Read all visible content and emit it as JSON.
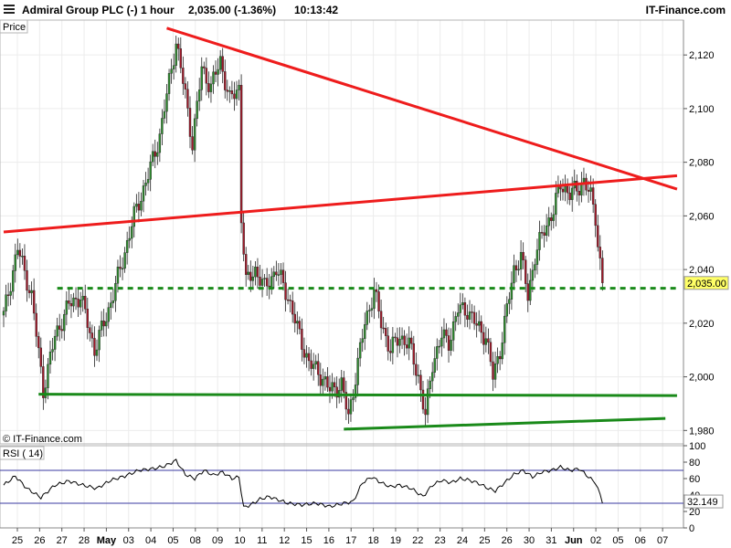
{
  "header": {
    "title": "Admiral Group PLC (-)",
    "timeframe": "1 hour",
    "quote": "2,035.00 (-1.36%)",
    "time": "10:13:42",
    "brand": "IT-Finance.com"
  },
  "main_panel": {
    "label": "Price",
    "copyright": "© IT-Finance.com"
  },
  "rsi_panel": {
    "label": "RSI ( 14)",
    "value_label": "32.149"
  },
  "colors": {
    "up": "#2e8b2e",
    "down": "#a01a2a",
    "resistance": "#ee1c1c",
    "support": "#1a8a1a",
    "rsi_line": "#000000",
    "rsi_ref": "#3a3aa0"
  },
  "chart_data": [
    {
      "type": "candlestick",
      "title": "Admiral Group PLC (-) 1 hour",
      "ylabel": "Price",
      "ylim": [
        1975,
        2133
      ],
      "y_ticks": [
        1980,
        2000,
        2020,
        2040,
        2060,
        2080,
        2100,
        2120
      ],
      "y_tick_labels": [
        "1,980",
        "2,000",
        "2,020",
        "2,040",
        "2,060",
        "2,080",
        "2,100",
        "2,120"
      ],
      "x_ticks": [
        "25",
        "26",
        "27",
        "28",
        "May",
        "03",
        "04",
        "05",
        "08",
        "09",
        "10",
        "11",
        "12",
        "15",
        "16",
        "17",
        "18",
        "19",
        "22",
        "23",
        "24",
        "25",
        "26",
        "30",
        "31",
        "Jun",
        "02",
        "05",
        "06",
        "07"
      ],
      "last_price_label": "2,035.00",
      "price_path": [
        {
          "i": 0,
          "v": 2023
        },
        {
          "i": 6,
          "v": 2048
        },
        {
          "i": 12,
          "v": 2030
        },
        {
          "i": 17,
          "v": 1995
        },
        {
          "i": 22,
          "v": 2015
        },
        {
          "i": 28,
          "v": 2027
        },
        {
          "i": 33,
          "v": 2030
        },
        {
          "i": 39,
          "v": 2010
        },
        {
          "i": 45,
          "v": 2025
        },
        {
          "i": 50,
          "v": 2040
        },
        {
          "i": 56,
          "v": 2060
        },
        {
          "i": 62,
          "v": 2075
        },
        {
          "i": 67,
          "v": 2090
        },
        {
          "i": 71,
          "v": 2110
        },
        {
          "i": 74,
          "v": 2125
        },
        {
          "i": 78,
          "v": 2105
        },
        {
          "i": 81,
          "v": 2087
        },
        {
          "i": 85,
          "v": 2115
        },
        {
          "i": 89,
          "v": 2108
        },
        {
          "i": 93,
          "v": 2118
        },
        {
          "i": 97,
          "v": 2103
        },
        {
          "i": 101,
          "v": 2108
        },
        {
          "i": 102,
          "v": 2060
        },
        {
          "i": 104,
          "v": 2035
        },
        {
          "i": 108,
          "v": 2040
        },
        {
          "i": 112,
          "v": 2033
        },
        {
          "i": 117,
          "v": 2040
        },
        {
          "i": 122,
          "v": 2030
        },
        {
          "i": 126,
          "v": 2018
        },
        {
          "i": 131,
          "v": 2005
        },
        {
          "i": 135,
          "v": 2002
        },
        {
          "i": 140,
          "v": 1995
        },
        {
          "i": 145,
          "v": 1997
        },
        {
          "i": 148,
          "v": 1985
        },
        {
          "i": 151,
          "v": 2000
        },
        {
          "i": 155,
          "v": 2020
        },
        {
          "i": 159,
          "v": 2032
        },
        {
          "i": 162,
          "v": 2020
        },
        {
          "i": 166,
          "v": 2010
        },
        {
          "i": 170,
          "v": 2015
        },
        {
          "i": 174,
          "v": 2012
        },
        {
          "i": 178,
          "v": 2000
        },
        {
          "i": 181,
          "v": 1985
        },
        {
          "i": 184,
          "v": 2005
        },
        {
          "i": 188,
          "v": 2015
        },
        {
          "i": 191,
          "v": 2013
        },
        {
          "i": 195,
          "v": 2025
        },
        {
          "i": 199,
          "v": 2025
        },
        {
          "i": 203,
          "v": 2019
        },
        {
          "i": 207,
          "v": 2015
        },
        {
          "i": 210,
          "v": 2000
        },
        {
          "i": 213,
          "v": 2010
        },
        {
          "i": 216,
          "v": 2025
        },
        {
          "i": 219,
          "v": 2040
        },
        {
          "i": 222,
          "v": 2045
        },
        {
          "i": 225,
          "v": 2030
        },
        {
          "i": 228,
          "v": 2045
        },
        {
          "i": 232,
          "v": 2055
        },
        {
          "i": 236,
          "v": 2062
        },
        {
          "i": 239,
          "v": 2072
        },
        {
          "i": 243,
          "v": 2068
        },
        {
          "i": 246,
          "v": 2070
        },
        {
          "i": 249,
          "v": 2073
        },
        {
          "i": 252,
          "v": 2067
        },
        {
          "i": 254,
          "v": 2060
        },
        {
          "i": 255,
          "v": 2050
        },
        {
          "i": 257,
          "v": 2035
        }
      ],
      "trendlines": [
        {
          "name": "resistance-upper",
          "color": "#ee1c1c",
          "style": "solid",
          "from": {
            "i": 70,
            "v": 2130
          },
          "to": {
            "i": 289,
            "v": 2070
          }
        },
        {
          "name": "resistance-lower",
          "color": "#ee1c1c",
          "style": "solid",
          "from": {
            "i": 0,
            "v": 2054
          },
          "to": {
            "i": 289,
            "v": 2075
          }
        },
        {
          "name": "support-dashed",
          "color": "#1a8a1a",
          "style": "dashed",
          "from": {
            "i": 23,
            "v": 2033
          },
          "to": {
            "i": 289,
            "v": 2033
          }
        },
        {
          "name": "support-flat",
          "color": "#1a8a1a",
          "style": "solid",
          "from": {
            "i": 15,
            "v": 1993.5
          },
          "to": {
            "i": 289,
            "v": 1993
          }
        },
        {
          "name": "support-rising",
          "color": "#1a8a1a",
          "style": "solid",
          "from": {
            "i": 146,
            "v": 1980.5
          },
          "to": {
            "i": 284,
            "v": 1984.5
          }
        }
      ],
      "grid": true
    },
    {
      "type": "line",
      "title": "RSI ( 14)",
      "ylim": [
        0,
        100
      ],
      "y_ticks": [
        0,
        20,
        40,
        60,
        80,
        100
      ],
      "reference_levels": [
        30,
        70
      ],
      "last_value": 32.149,
      "rsi_path": [
        {
          "i": 0,
          "v": 52
        },
        {
          "i": 5,
          "v": 63
        },
        {
          "i": 10,
          "v": 48
        },
        {
          "i": 16,
          "v": 37
        },
        {
          "i": 22,
          "v": 52
        },
        {
          "i": 28,
          "v": 57
        },
        {
          "i": 34,
          "v": 52
        },
        {
          "i": 40,
          "v": 48
        },
        {
          "i": 46,
          "v": 58
        },
        {
          "i": 52,
          "v": 63
        },
        {
          "i": 58,
          "v": 70
        },
        {
          "i": 64,
          "v": 72
        },
        {
          "i": 69,
          "v": 75
        },
        {
          "i": 74,
          "v": 82
        },
        {
          "i": 78,
          "v": 65
        },
        {
          "i": 82,
          "v": 60
        },
        {
          "i": 86,
          "v": 70
        },
        {
          "i": 90,
          "v": 64
        },
        {
          "i": 94,
          "v": 68
        },
        {
          "i": 98,
          "v": 60
        },
        {
          "i": 101,
          "v": 62
        },
        {
          "i": 103,
          "v": 25
        },
        {
          "i": 106,
          "v": 28
        },
        {
          "i": 110,
          "v": 35
        },
        {
          "i": 114,
          "v": 38
        },
        {
          "i": 118,
          "v": 34
        },
        {
          "i": 122,
          "v": 30
        },
        {
          "i": 128,
          "v": 28
        },
        {
          "i": 134,
          "v": 30
        },
        {
          "i": 140,
          "v": 26
        },
        {
          "i": 146,
          "v": 30
        },
        {
          "i": 150,
          "v": 32
        },
        {
          "i": 154,
          "v": 55
        },
        {
          "i": 158,
          "v": 62
        },
        {
          "i": 162,
          "v": 55
        },
        {
          "i": 166,
          "v": 50
        },
        {
          "i": 170,
          "v": 52
        },
        {
          "i": 175,
          "v": 48
        },
        {
          "i": 180,
          "v": 38
        },
        {
          "i": 184,
          "v": 52
        },
        {
          "i": 188,
          "v": 58
        },
        {
          "i": 192,
          "v": 55
        },
        {
          "i": 196,
          "v": 60
        },
        {
          "i": 200,
          "v": 58
        },
        {
          "i": 204,
          "v": 54
        },
        {
          "i": 208,
          "v": 48
        },
        {
          "i": 211,
          "v": 45
        },
        {
          "i": 215,
          "v": 55
        },
        {
          "i": 219,
          "v": 65
        },
        {
          "i": 223,
          "v": 70
        },
        {
          "i": 227,
          "v": 62
        },
        {
          "i": 231,
          "v": 68
        },
        {
          "i": 235,
          "v": 70
        },
        {
          "i": 239,
          "v": 74
        },
        {
          "i": 243,
          "v": 70
        },
        {
          "i": 247,
          "v": 72
        },
        {
          "i": 251,
          "v": 62
        },
        {
          "i": 254,
          "v": 55
        },
        {
          "i": 256,
          "v": 40
        },
        {
          "i": 257,
          "v": 32
        }
      ]
    }
  ]
}
